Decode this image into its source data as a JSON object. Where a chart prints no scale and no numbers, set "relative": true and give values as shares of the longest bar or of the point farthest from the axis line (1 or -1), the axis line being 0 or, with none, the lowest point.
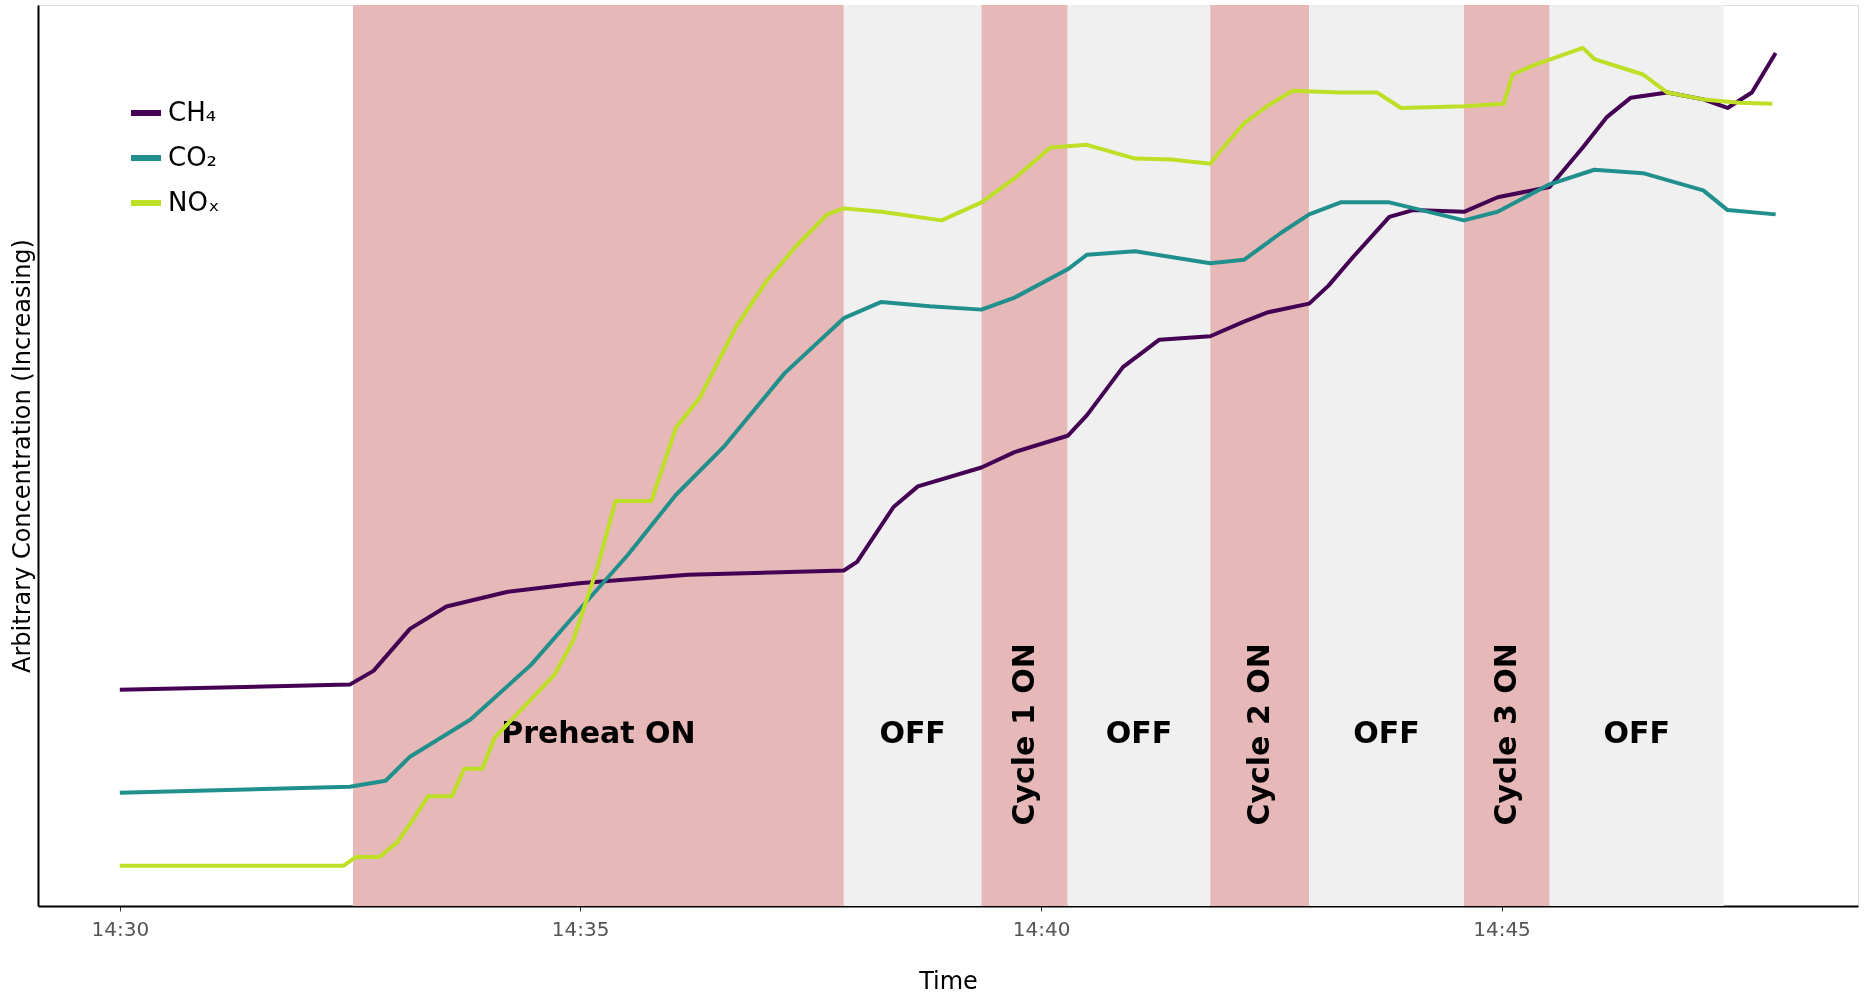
{
  "chart_data": {
    "type": "line",
    "relative": true,
    "xlabel": "Time",
    "ylabel": "Arbitrary Concentration (Increasing)",
    "xlim": [
      14.4852,
      14.8145
    ],
    "xticks": [
      {
        "value": 14.5,
        "label": "14:30"
      },
      {
        "value": 14.5833,
        "label": "14:35"
      },
      {
        "value": 14.6667,
        "label": "14:40"
      },
      {
        "value": 14.75,
        "label": "14:45"
      }
    ],
    "grid": false,
    "legend": "top left",
    "line_style": "solid",
    "marker": "none",
    "bands": [
      {
        "axis": "x",
        "from": 14.5422,
        "to": 14.631,
        "label": "Preheat ON",
        "color": "#e6b8b8"
      },
      {
        "axis": "x",
        "from": 14.631,
        "to": 14.6559,
        "label": "OFF",
        "color": "#f0f0f0"
      },
      {
        "axis": "x",
        "from": 14.6559,
        "to": 14.6715,
        "label": "Cycle 1 ON",
        "color": "#e6b8b8"
      },
      {
        "axis": "x",
        "from": 14.6715,
        "to": 14.6973,
        "label": "OFF",
        "color": "#f0f0f0"
      },
      {
        "axis": "x",
        "from": 14.6973,
        "to": 14.7152,
        "label": "Cycle 2 ON",
        "color": "#e6b8b8"
      },
      {
        "axis": "x",
        "from": 14.7152,
        "to": 14.7432,
        "label": "OFF",
        "color": "#f0f0f0"
      },
      {
        "axis": "x",
        "from": 14.7432,
        "to": 14.7587,
        "label": "Cycle 3 ON",
        "color": "#e6b8b8"
      },
      {
        "axis": "x",
        "from": 14.7587,
        "to": 14.7902,
        "label": "OFF",
        "color": "#f0f0f0"
      }
    ],
    "series": [
      {
        "name": "CH₄",
        "color": "#440154",
        "x": [
          14.5,
          14.5416,
          14.5459,
          14.5525,
          14.5591,
          14.57,
          14.5831,
          14.6028,
          14.631,
          14.6334,
          14.64,
          14.6444,
          14.6559,
          14.6619,
          14.6715,
          14.675,
          14.6815,
          14.6881,
          14.6973,
          14.7034,
          14.7078,
          14.7152,
          14.7187,
          14.7231,
          14.7297,
          14.734,
          14.7432,
          14.7493,
          14.7587,
          14.7647,
          14.769,
          14.7734,
          14.78,
          14.7865,
          14.7909,
          14.7953,
          14.7996
        ],
        "values": [
          0.252,
          0.258,
          0.274,
          0.323,
          0.349,
          0.366,
          0.376,
          0.386,
          0.391,
          0.401,
          0.465,
          0.489,
          0.511,
          0.529,
          0.548,
          0.572,
          0.628,
          0.66,
          0.664,
          0.681,
          0.692,
          0.702,
          0.723,
          0.756,
          0.803,
          0.811,
          0.809,
          0.826,
          0.838,
          0.884,
          0.919,
          0.942,
          0.948,
          0.94,
          0.93,
          0.948,
          0.994
        ]
      },
      {
        "name": "CO₂",
        "color": "#21908d",
        "x": [
          14.5,
          14.5416,
          14.5481,
          14.5525,
          14.5634,
          14.5744,
          14.5831,
          14.5919,
          14.6006,
          14.6094,
          14.6203,
          14.631,
          14.6378,
          14.6465,
          14.6559,
          14.6619,
          14.6715,
          14.675,
          14.6837,
          14.6973,
          14.7034,
          14.71,
          14.7152,
          14.7209,
          14.7297,
          14.7432,
          14.7493,
          14.7587,
          14.7668,
          14.7756,
          14.7865,
          14.7909,
          14.7996
        ],
        "values": [
          0.132,
          0.139,
          0.146,
          0.174,
          0.217,
          0.281,
          0.345,
          0.409,
          0.479,
          0.536,
          0.621,
          0.685,
          0.704,
          0.699,
          0.695,
          0.709,
          0.742,
          0.759,
          0.763,
          0.749,
          0.753,
          0.784,
          0.806,
          0.82,
          0.82,
          0.799,
          0.809,
          0.841,
          0.858,
          0.854,
          0.834,
          0.811,
          0.806
        ]
      },
      {
        "name": "NOₓ",
        "color": "#bddf26",
        "x": [
          14.5,
          14.5405,
          14.5427,
          14.547,
          14.5503,
          14.5536,
          14.5558,
          14.5601,
          14.5623,
          14.5656,
          14.5678,
          14.5787,
          14.582,
          14.5864,
          14.5897,
          14.5962,
          14.6006,
          14.605,
          14.6115,
          14.617,
          14.6225,
          14.628,
          14.631,
          14.6378,
          14.6487,
          14.6559,
          14.6619,
          14.6684,
          14.675,
          14.6837,
          14.6903,
          14.6973,
          14.699,
          14.7034,
          14.7078,
          14.7122,
          14.7209,
          14.7275,
          14.7318,
          14.7432,
          14.7504,
          14.752,
          14.7559,
          14.7647,
          14.7668,
          14.7756,
          14.78,
          14.7865,
          14.7931,
          14.799
        ],
        "values": [
          0.047,
          0.047,
          0.057,
          0.057,
          0.075,
          0.106,
          0.128,
          0.128,
          0.16,
          0.16,
          0.196,
          0.27,
          0.309,
          0.394,
          0.472,
          0.472,
          0.557,
          0.593,
          0.675,
          0.728,
          0.77,
          0.806,
          0.813,
          0.809,
          0.799,
          0.82,
          0.848,
          0.884,
          0.887,
          0.871,
          0.87,
          0.865,
          0.879,
          0.912,
          0.933,
          0.95,
          0.948,
          0.948,
          0.93,
          0.932,
          0.935,
          0.969,
          0.98,
          1.0,
          0.987,
          0.969,
          0.948,
          0.94,
          0.936,
          0.935
        ]
      }
    ]
  }
}
